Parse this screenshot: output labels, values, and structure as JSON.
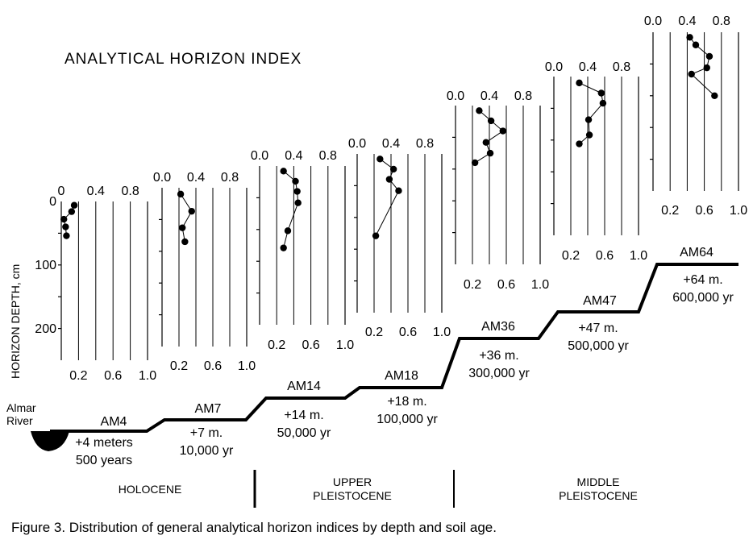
{
  "title": "ANALYTICAL HORIZON INDEX",
  "ylabel": "HORIZON DEPTH, cm",
  "depth_ticks": [
    "0",
    "100",
    "200"
  ],
  "caption": "Figure 3. Distribution of general analytical horizon indices by depth and soil age.",
  "river_label": [
    "Almar",
    "River"
  ],
  "epochs": [
    {
      "lines": [
        "HOLOCENE"
      ]
    },
    {
      "lines": [
        "UPPER",
        "PLEISTOCENE"
      ]
    },
    {
      "lines": [
        "MIDDLE",
        "PLEISTOCENE"
      ]
    }
  ],
  "colors": {
    "ink": "#000000",
    "background": "#ffffff"
  },
  "chart_data": [
    {
      "type": "line",
      "name": "AM4",
      "elevation": "+4 meters",
      "age": "500 years",
      "x_ticks_top": [
        "0",
        "0.4",
        "0.8"
      ],
      "x_ticks_bottom": [
        "0.2",
        "0.6",
        "1.0"
      ],
      "xlim": [
        0,
        1.0
      ],
      "xlabel_top_visible": true,
      "points": [
        [
          0.15,
          6
        ],
        [
          0.12,
          16
        ],
        [
          0.03,
          28
        ],
        [
          0.05,
          40
        ],
        [
          0.06,
          54
        ]
      ]
    },
    {
      "type": "line",
      "name": "AM7",
      "elevation": "+7 m.",
      "age": "10,000 yr",
      "x_ticks_top": [
        "0.0",
        "0.4",
        "0.8"
      ],
      "x_ticks_bottom": [
        "0.2",
        "0.6",
        "1.0"
      ],
      "xlim": [
        0,
        1.0
      ],
      "points": [
        [
          0.22,
          10
        ],
        [
          0.35,
          37
        ],
        [
          0.24,
          63
        ],
        [
          0.27,
          85
        ]
      ]
    },
    {
      "type": "line",
      "name": "AM14",
      "elevation": "+14 m.",
      "age": "50,000 yr",
      "x_ticks_top": [
        "0.0",
        "0.4",
        "0.8"
      ],
      "x_ticks_bottom": [
        "0.2",
        "0.6",
        "1.0"
      ],
      "xlim": [
        0,
        1.0
      ],
      "points": [
        [
          0.28,
          8
        ],
        [
          0.42,
          24
        ],
        [
          0.44,
          40
        ],
        [
          0.45,
          58
        ],
        [
          0.33,
          102
        ],
        [
          0.28,
          129
        ]
      ]
    },
    {
      "type": "line",
      "name": "AM18",
      "elevation": "+18 m.",
      "age": "100,000 yr",
      "x_ticks_top": [
        "0.0",
        "0.4",
        "0.8"
      ],
      "x_ticks_bottom": [
        "0.2",
        "0.6",
        "1.0"
      ],
      "xlim": [
        0,
        1.0
      ],
      "points": [
        [
          0.27,
          8
        ],
        [
          0.43,
          24
        ],
        [
          0.38,
          40
        ],
        [
          0.49,
          58
        ],
        [
          0.22,
          129
        ]
      ]
    },
    {
      "type": "line",
      "name": "AM36",
      "elevation": "+36 m.",
      "age": "300,000 yr",
      "x_ticks_top": [
        "0.0",
        "0.4",
        "0.8"
      ],
      "x_ticks_bottom": [
        "0.2",
        "0.6",
        "1.0"
      ],
      "xlim": [
        0,
        1.0
      ],
      "points": [
        [
          0.28,
          8
        ],
        [
          0.42,
          24
        ],
        [
          0.56,
          40
        ],
        [
          0.36,
          58
        ],
        [
          0.41,
          75
        ],
        [
          0.23,
          90
        ]
      ]
    },
    {
      "type": "line",
      "name": "AM47",
      "elevation": "+47 m.",
      "age": "500,000 yr",
      "x_ticks_top": [
        "0.0",
        "0.4",
        "0.8"
      ],
      "x_ticks_bottom": [
        "0.2",
        "0.6",
        "1.0"
      ],
      "xlim": [
        0,
        1.0
      ],
      "points": [
        [
          0.3,
          10
        ],
        [
          0.56,
          26
        ],
        [
          0.58,
          42
        ],
        [
          0.41,
          68
        ],
        [
          0.42,
          92
        ],
        [
          0.3,
          106
        ]
      ]
    },
    {
      "type": "line",
      "name": "AM64",
      "elevation": "+64 m.",
      "age": "600,000 yr",
      "x_ticks_top": [
        "0.0",
        "0.4",
        "0.8"
      ],
      "x_ticks_bottom": [
        "0.2",
        "0.6",
        "1.0"
      ],
      "xlim": [
        0,
        1.0
      ],
      "points": [
        [
          0.43,
          8
        ],
        [
          0.5,
          20
        ],
        [
          0.66,
          38
        ],
        [
          0.63,
          56
        ],
        [
          0.45,
          66
        ],
        [
          0.72,
          100
        ]
      ]
    }
  ]
}
